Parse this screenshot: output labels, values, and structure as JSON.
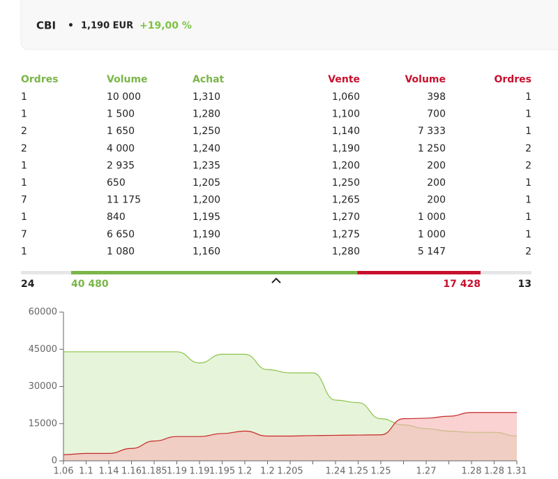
{
  "header": {
    "ticker": "CBI",
    "bullet": "•",
    "price": "1,190 EUR",
    "change": "+19,00 %"
  },
  "table": {
    "headers": [
      "Ordres",
      "Volume",
      "Achat",
      "Vente",
      "Volume",
      "Ordres"
    ],
    "rows": [
      [
        "1",
        "10 000",
        "1,310",
        "1,060",
        "398",
        "1"
      ],
      [
        "1",
        "1 500",
        "1,280",
        "1,100",
        "700",
        "1"
      ],
      [
        "2",
        "1 650",
        "1,250",
        "1,140",
        "7 333",
        "1"
      ],
      [
        "2",
        "4 000",
        "1,240",
        "1,190",
        "1 250",
        "2"
      ],
      [
        "1",
        "2 935",
        "1,235",
        "1,200",
        "200",
        "2"
      ],
      [
        "1",
        "650",
        "1,205",
        "1,250",
        "200",
        "1"
      ],
      [
        "7",
        "11 175",
        "1,200",
        "1,265",
        "200",
        "1"
      ],
      [
        "1",
        "840",
        "1,195",
        "1,270",
        "1 000",
        "1"
      ],
      [
        "7",
        "6 650",
        "1,190",
        "1,275",
        "1 000",
        "1"
      ],
      [
        "1",
        "1 080",
        "1,160",
        "1,280",
        "5 147",
        "2"
      ]
    ]
  },
  "summary": {
    "buy_orders": "24",
    "buy_volume": {
      "value": 40480,
      "label": "40 480"
    },
    "sell_volume": {
      "value": 17428,
      "label": "17 428"
    },
    "sell_orders": "13",
    "buy_color": "#7ab648",
    "sell_color": "#c8102e"
  },
  "chart_data": {
    "type": "area",
    "categories": [
      "1.06",
      "1.1",
      "1.14",
      "1.16",
      "1.185",
      "1.19",
      "1.19",
      "1.195",
      "1.2",
      "1.2",
      "1.205",
      null,
      "1.24",
      "1.25",
      "1.25",
      null,
      "1.27",
      null,
      "1.28",
      "1.28",
      "1.31"
    ],
    "series": [
      {
        "name": "Achat",
        "color": "#8bc34a",
        "fill": "#e6f4da",
        "values": [
          44000,
          44000,
          44000,
          44000,
          44000,
          44000,
          39500,
          43000,
          43000,
          36800,
          35500,
          35500,
          24500,
          23500,
          17000,
          14500,
          13000,
          12000,
          11500,
          11500,
          10000
        ]
      },
      {
        "name": "Vente",
        "color": "#c62828",
        "fill": "#f7b4b4",
        "values": [
          2500,
          3000,
          3000,
          5000,
          8000,
          9800,
          9800,
          11000,
          12000,
          10000,
          10000,
          10200,
          10300,
          10400,
          10500,
          17000,
          17200,
          18000,
          19500,
          19500,
          19500
        ]
      }
    ],
    "ylim": [
      0,
      60000
    ],
    "yticks": [
      0,
      15000,
      30000,
      45000,
      60000
    ]
  }
}
